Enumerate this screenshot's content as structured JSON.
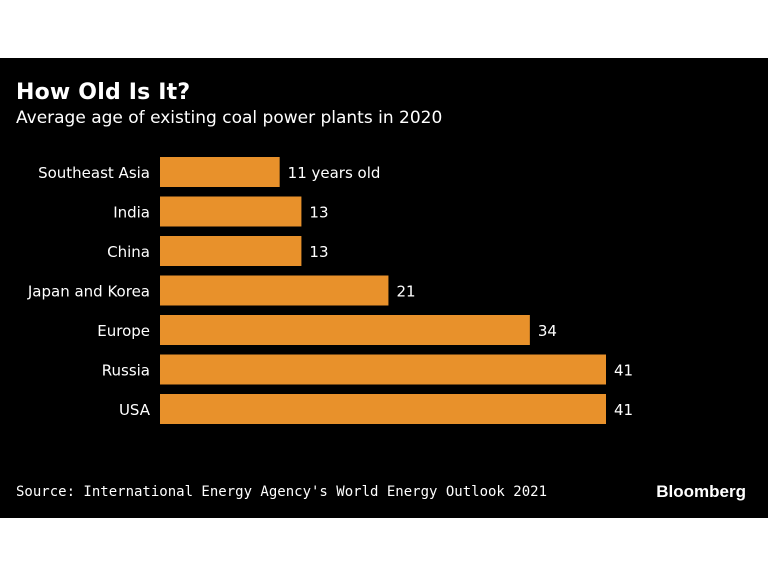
{
  "card": {
    "title": "How Old Is It?",
    "subtitle": "Average age of existing coal power plants in 2020",
    "source": "Source: International Energy Agency's World Energy Outlook 2021",
    "brand": "Bloomberg"
  },
  "colors": {
    "background": "#000000",
    "bar": "#e8912b",
    "text": "#ffffff"
  },
  "chart_data": {
    "type": "bar",
    "orientation": "horizontal",
    "title": "How Old Is It?",
    "subtitle": "Average age of existing coal power plants in 2020",
    "categories": [
      "Southeast Asia",
      "India",
      "China",
      "Japan and Korea",
      "Europe",
      "Russia",
      "USA"
    ],
    "values": [
      11,
      13,
      13,
      21,
      34,
      41,
      41
    ],
    "data_labels": [
      "11 years old",
      "13",
      "13",
      "21",
      "34",
      "41",
      "41"
    ],
    "xlim": [
      0,
      41
    ],
    "grid": false,
    "legend": "none"
  }
}
